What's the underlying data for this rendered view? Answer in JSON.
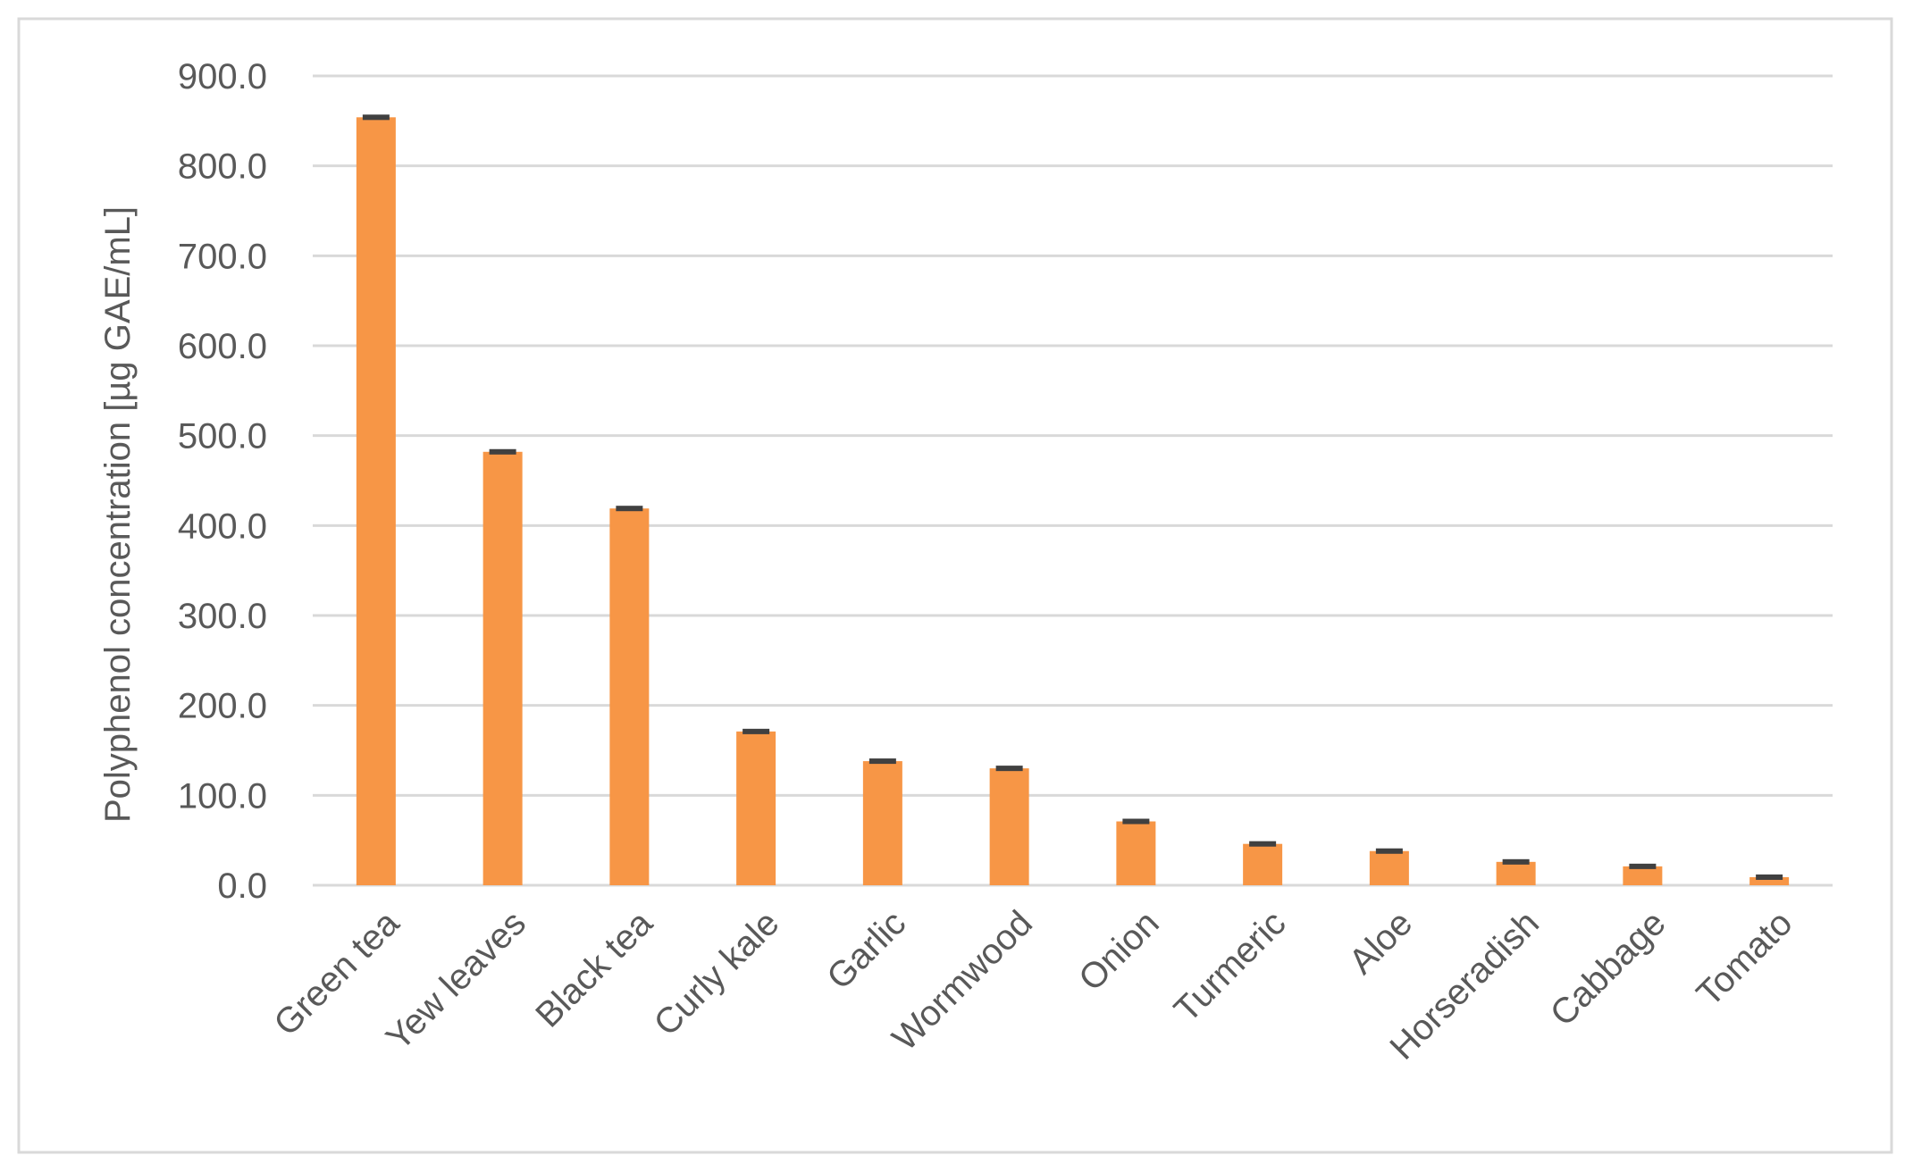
{
  "chart_data": {
    "type": "bar",
    "y_label": "Polyphenol concentration  [µg GAE/mL]",
    "categories": [
      "Green tea",
      "Yew leaves",
      "Black tea",
      "Curly kale",
      "Garlic",
      "Wormwood",
      "Onion",
      "Turmeric",
      "Aloe",
      "Horseradish",
      "Cabbage",
      "Tomato"
    ],
    "values": [
      854,
      482,
      419,
      171,
      138,
      130,
      71,
      46,
      38,
      26,
      21,
      9
    ],
    "errors": [
      3,
      3,
      3,
      3,
      3,
      3,
      3,
      3,
      3,
      3,
      3,
      3
    ],
    "color": "#f79646",
    "error_color": "#404040",
    "ylim": [
      0,
      900
    ],
    "yticks": [
      {
        "value": 0,
        "label": "0.0"
      },
      {
        "value": 100,
        "label": "100.0"
      },
      {
        "value": 200,
        "label": "200.0"
      },
      {
        "value": 300,
        "label": "300.0"
      },
      {
        "value": 400,
        "label": "400.0"
      },
      {
        "value": 500,
        "label": "500.0"
      },
      {
        "value": 600,
        "label": "600.0"
      },
      {
        "value": 700,
        "label": "700.0"
      },
      {
        "value": 800,
        "label": "800.0"
      },
      {
        "value": 900,
        "label": "900.0"
      }
    ],
    "grid": true
  }
}
